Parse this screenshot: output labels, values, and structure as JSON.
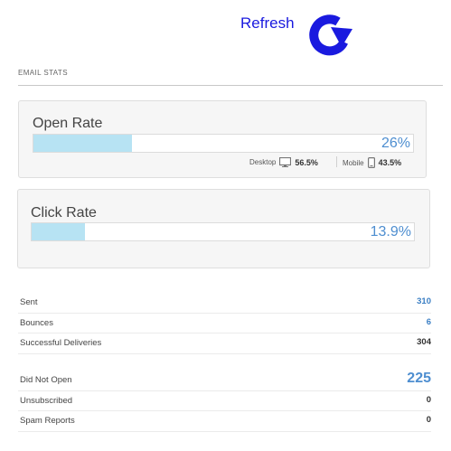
{
  "header": {
    "refresh_label": "Refresh",
    "refresh_icon": "refresh-arrow-icon",
    "refresh_color": "#1a1adf"
  },
  "email_stats": {
    "title": "EMAIL STATS",
    "open_rate": {
      "label": "Open Rate",
      "value": "26%",
      "fill_fraction": 0.26,
      "desktop_label": "Desktop",
      "desktop_value": "56.5%",
      "mobile_label": "Mobile",
      "mobile_value": "43.5%"
    },
    "click_rate": {
      "label": "Click Rate",
      "value": "13.9%",
      "fill_fraction": 0.139
    },
    "summary": [
      {
        "label": "Sent",
        "value": "310",
        "style": "blue"
      },
      {
        "label": "Bounces",
        "value": "6",
        "style": "blue"
      },
      {
        "label": "Successful Deliveries",
        "value": "304",
        "style": "plain"
      }
    ],
    "engagement": [
      {
        "label": "Did Not Open",
        "value": "225",
        "style": "big"
      },
      {
        "label": "Unsubscribed",
        "value": "0",
        "style": "plain"
      },
      {
        "label": "Spam Reports",
        "value": "0",
        "style": "plain"
      }
    ]
  },
  "colors": {
    "bar_fill": "#b7e3f3",
    "rate_value": "#4e8ed0",
    "link_value": "#3b7fc4"
  }
}
